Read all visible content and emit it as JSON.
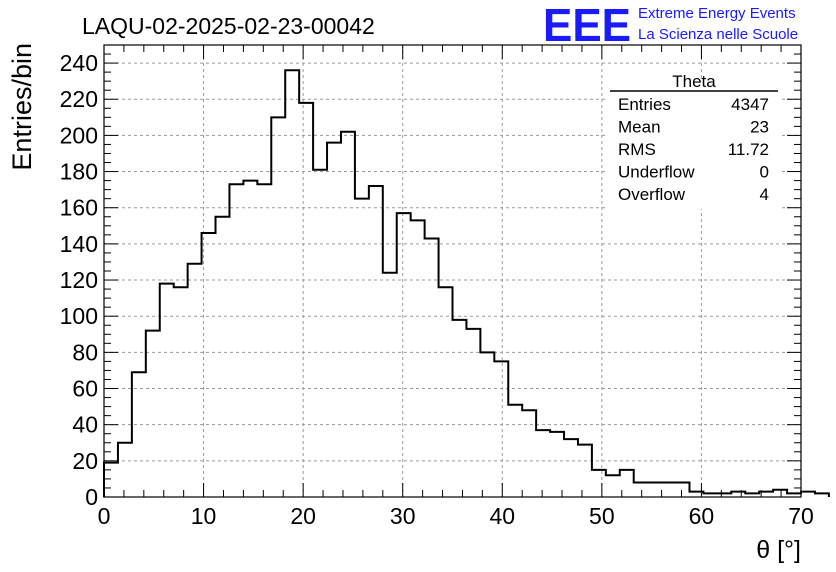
{
  "header": {
    "run_id": "LAQU-02-2025-02-23-00042",
    "logo_mark": "EEE",
    "logo_line1": "Extreme Energy Events",
    "logo_line2": "La Scienza nelle Scuole"
  },
  "stats_box": {
    "title": "Theta",
    "rows": [
      {
        "label": "Entries",
        "value": "4347"
      },
      {
        "label": "Mean",
        "value": "23"
      },
      {
        "label": "RMS",
        "value": "11.72"
      },
      {
        "label": "Underflow",
        "value": "0"
      },
      {
        "label": "Overflow",
        "value": "4"
      }
    ]
  },
  "chart_data": {
    "type": "bar",
    "histogram_style": "step",
    "xlabel": "θ [°]",
    "ylabel": "Entries/bin",
    "xlim": [
      0,
      70
    ],
    "ylim": [
      0,
      250
    ],
    "grid": true,
    "bin_width": 1.4,
    "x_ticks": [
      0,
      10,
      20,
      30,
      40,
      50,
      60,
      70
    ],
    "y_ticks": [
      0,
      20,
      40,
      60,
      80,
      100,
      120,
      140,
      160,
      180,
      200,
      220,
      240
    ],
    "values": [
      19,
      30,
      69,
      92,
      118,
      116,
      129,
      146,
      155,
      173,
      175,
      173,
      210,
      236,
      218,
      181,
      196,
      202,
      165,
      172,
      124,
      157,
      153,
      143,
      116,
      98,
      93,
      80,
      75,
      51,
      48,
      37,
      36,
      32,
      29,
      15,
      12,
      15,
      8,
      8,
      8,
      8,
      3,
      2,
      2,
      3,
      2,
      3,
      4,
      2,
      3,
      2
    ]
  }
}
